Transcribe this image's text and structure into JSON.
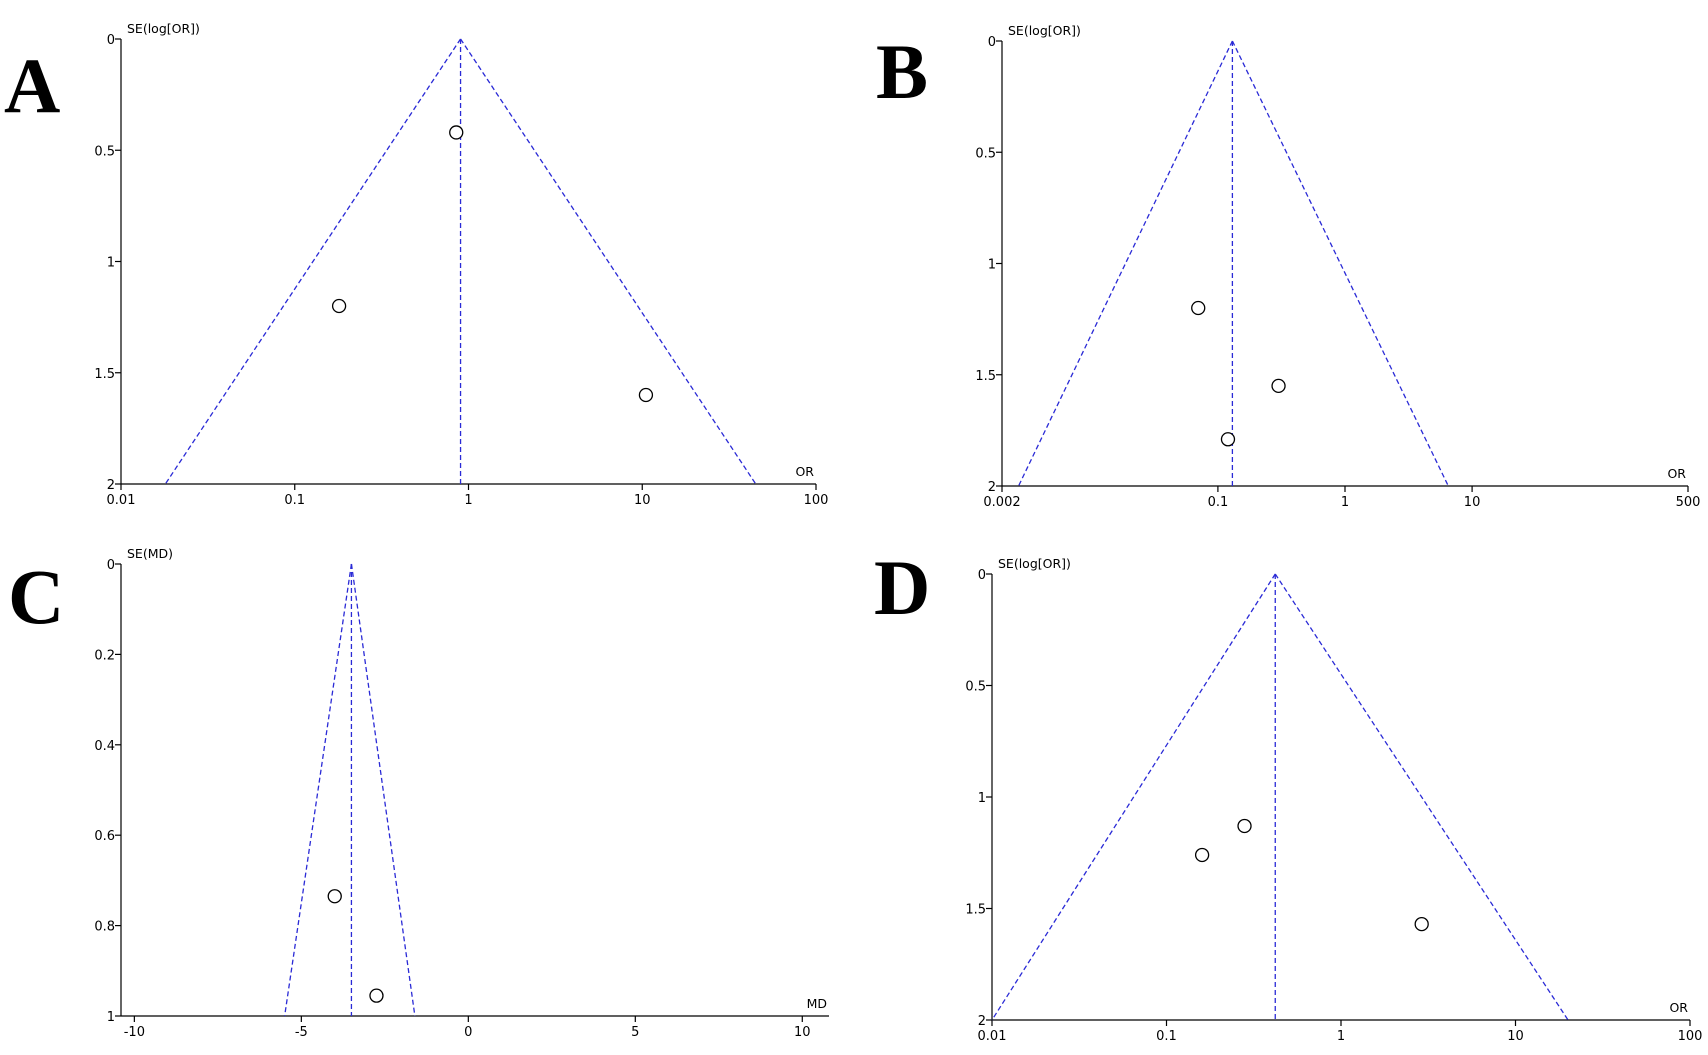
{
  "chart_data": [
    {
      "panel": "A",
      "type": "scatter",
      "subtype": "funnel",
      "xlabel": "OR",
      "ylabel": "SE(log[OR])",
      "x_scale": "log",
      "x_ticks": [
        0.01,
        0.1,
        1,
        10,
        100
      ],
      "x_tick_labels": [
        "0.01",
        "0.1",
        "1",
        "10",
        "100"
      ],
      "xlim": [
        0.01,
        100
      ],
      "y_ticks": [
        0,
        0.5,
        1,
        1.5,
        2
      ],
      "y_tick_labels": [
        "0",
        "0.5",
        "1",
        "1.5",
        "2"
      ],
      "ylim": [
        0,
        2
      ],
      "y_inverted": true,
      "pooled_estimate": 0.9,
      "funnel_bottom": [
        0.018,
        45
      ],
      "points": [
        {
          "x": 0.85,
          "y": 0.42
        },
        {
          "x": 0.18,
          "y": 1.2
        },
        {
          "x": 10.5,
          "y": 1.6
        }
      ],
      "colors": {
        "funnel": "#2a2ad6",
        "points": "#000000"
      }
    },
    {
      "panel": "B",
      "type": "scatter",
      "subtype": "funnel",
      "xlabel": "OR",
      "ylabel": "SE(log[OR])",
      "x_scale": "log",
      "x_ticks": [
        0.002,
        0.1,
        1,
        10,
        500
      ],
      "x_tick_labels": [
        "0.002",
        "0.1",
        "1",
        "10",
        "500"
      ],
      "xlim": [
        0.002,
        500
      ],
      "y_ticks": [
        0,
        0.5,
        1,
        1.5,
        2
      ],
      "y_tick_labels": [
        "0",
        "0.5",
        "1",
        "1.5",
        "2"
      ],
      "ylim": [
        0,
        2
      ],
      "y_inverted": true,
      "pooled_estimate": 0.13,
      "funnel_bottom": [
        0.0027,
        6.5
      ],
      "points": [
        {
          "x": 0.07,
          "y": 1.2
        },
        {
          "x": 0.3,
          "y": 1.55
        },
        {
          "x": 0.12,
          "y": 1.79
        }
      ],
      "colors": {
        "funnel": "#2a2ad6",
        "points": "#000000"
      }
    },
    {
      "panel": "C",
      "type": "scatter",
      "subtype": "funnel",
      "xlabel": "MD",
      "ylabel": "SE(MD)",
      "x_scale": "linear",
      "x_ticks": [
        -10,
        -5,
        0,
        5,
        10
      ],
      "x_tick_labels": [
        "-10",
        "-5",
        "0",
        "5",
        "10"
      ],
      "xlim": [
        -10.4,
        10.8
      ],
      "y_ticks": [
        0,
        0.2,
        0.4,
        0.6,
        0.8,
        1
      ],
      "y_tick_labels": [
        "0",
        "0.2",
        "0.4",
        "0.6",
        "0.8",
        "1"
      ],
      "ylim": [
        0,
        1
      ],
      "y_inverted": true,
      "pooled_estimate": -3.5,
      "funnel_bottom": [
        -5.5,
        -1.6
      ],
      "points": [
        {
          "x": -4.0,
          "y": 0.735
        },
        {
          "x": -2.75,
          "y": 0.955
        }
      ],
      "colors": {
        "funnel": "#2a2ad6",
        "points": "#000000"
      }
    },
    {
      "panel": "D",
      "type": "scatter",
      "subtype": "funnel",
      "xlabel": "OR",
      "ylabel": "SE(log[OR])",
      "x_scale": "log",
      "x_ticks": [
        0.01,
        0.1,
        1,
        10,
        100
      ],
      "x_tick_labels": [
        "0.01",
        "0.1",
        "1",
        "10",
        "100"
      ],
      "xlim": [
        0.01,
        100
      ],
      "y_ticks": [
        0,
        0.5,
        1,
        1.5,
        2
      ],
      "y_tick_labels": [
        "0",
        "0.5",
        "1",
        "1.5",
        "2"
      ],
      "ylim": [
        0,
        2
      ],
      "y_inverted": true,
      "pooled_estimate": 0.42,
      "funnel_bottom": [
        0.01,
        20
      ],
      "points": [
        {
          "x": 0.28,
          "y": 1.13
        },
        {
          "x": 0.16,
          "y": 1.26
        },
        {
          "x": 2.9,
          "y": 1.57
        }
      ],
      "colors": {
        "funnel": "#2a2ad6",
        "points": "#000000"
      }
    }
  ]
}
